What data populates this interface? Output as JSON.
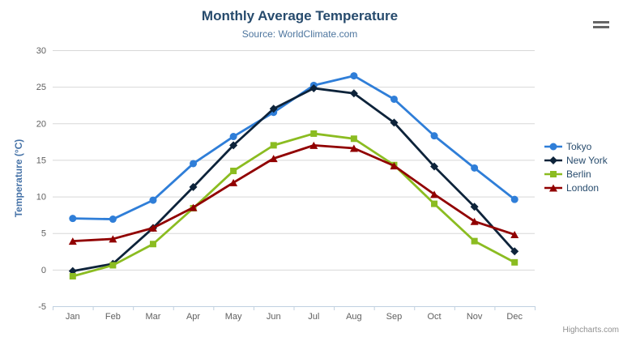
{
  "header": {
    "title": "Monthly Average Temperature",
    "subtitle": "Source: WorldClimate.com"
  },
  "menu": {
    "icon": "hamburger-menu-icon"
  },
  "credit": {
    "label": "Highcharts.com"
  },
  "colors": {
    "title": "#274b6d",
    "subtitle": "#4d759e",
    "grid_line": "#d8d8d8",
    "axis_line": "#c0d0e0",
    "tick_label": "#606060",
    "axis_title": "#4572a7",
    "legend_text": "#274b6d",
    "credit_text": "#909090",
    "menu_icon": "#666666",
    "background": "#ffffff"
  },
  "chart_data": {
    "type": "line",
    "title": "Monthly Average Temperature",
    "subtitle": "Source: WorldClimate.com",
    "categories": [
      "Jan",
      "Feb",
      "Mar",
      "Apr",
      "May",
      "Jun",
      "Jul",
      "Aug",
      "Sep",
      "Oct",
      "Nov",
      "Dec"
    ],
    "xlabel": "",
    "ylabel": "Temperature (°C)",
    "ylim": [
      -5,
      30
    ],
    "ytick_interval": 5,
    "grid": "horizontal-only",
    "legend_position": "right",
    "series": [
      {
        "name": "Tokyo",
        "color": "#2f7ed8",
        "marker": "circle",
        "values": [
          7.0,
          6.9,
          9.5,
          14.5,
          18.2,
          21.5,
          25.2,
          26.5,
          23.3,
          18.3,
          13.9,
          9.6
        ]
      },
      {
        "name": "New York",
        "color": "#0d233a",
        "marker": "diamond",
        "values": [
          -0.2,
          0.8,
          5.7,
          11.3,
          17.0,
          22.0,
          24.8,
          24.1,
          20.1,
          14.1,
          8.6,
          2.5
        ]
      },
      {
        "name": "Berlin",
        "color": "#8bbc21",
        "marker": "square",
        "values": [
          -0.9,
          0.6,
          3.5,
          8.4,
          13.5,
          17.0,
          18.6,
          17.9,
          14.3,
          9.0,
          3.9,
          1.0
        ]
      },
      {
        "name": "London",
        "color": "#910000",
        "marker": "triangle",
        "values": [
          3.9,
          4.2,
          5.7,
          8.5,
          11.9,
          15.2,
          17.0,
          16.6,
          14.2,
          10.3,
          6.6,
          4.8
        ]
      }
    ]
  }
}
